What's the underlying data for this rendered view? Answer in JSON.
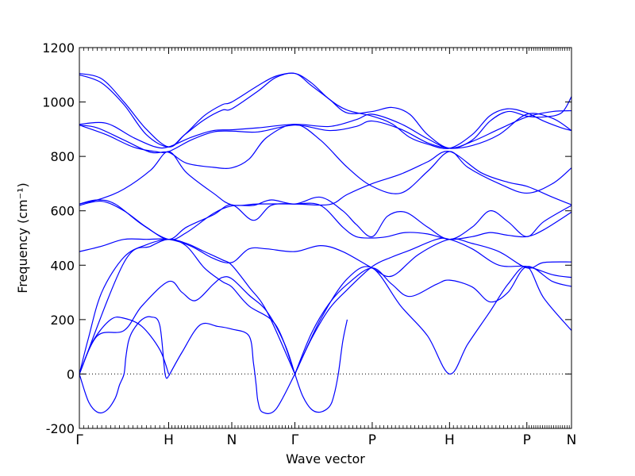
{
  "chart_data": {
    "type": "line",
    "title": "",
    "xlabel": "Wave vector",
    "ylabel": "Frequency (cm⁻¹)",
    "ylim": [
      -200,
      1200
    ],
    "y_ticks": [
      -200,
      0,
      200,
      400,
      600,
      800,
      1000,
      1200
    ],
    "grid": false,
    "legend": "none",
    "line_color": "#0000ff",
    "zero_line": {
      "y": 0,
      "style": "dotted",
      "color": "#000000"
    },
    "x_ticks": [
      {
        "label": "Γ",
        "x": 0.0
      },
      {
        "label": "H",
        "x": 1.0
      },
      {
        "label": "N",
        "x": 1.707
      },
      {
        "label": "Γ",
        "x": 2.414
      },
      {
        "label": "P",
        "x": 3.28
      },
      {
        "label": "H",
        "x": 4.146
      },
      {
        "label": "P",
        "x": 5.012
      },
      {
        "label": "N",
        "x": 5.512
      }
    ],
    "minor_ticks_per_segment": 20,
    "series": [
      {
        "x": [
          0,
          0.25,
          0.5,
          0.75,
          1,
          1.18,
          1.4,
          1.6,
          1.707,
          2.0,
          2.2,
          2.414,
          2.6,
          2.8,
          3.0,
          3.28,
          3.5,
          3.7,
          3.9,
          4.146,
          4.4,
          4.6,
          4.8,
          5.012,
          5.2,
          5.4,
          5.512
        ],
        "y": [
          1105,
          1085,
          1000,
          900,
          835,
          880,
          950,
          990,
          1000,
          1060,
          1095,
          1105,
          1070,
          1010,
          970,
          948,
          920,
          870,
          845,
          830,
          880,
          950,
          975,
          960,
          930,
          905,
          895
        ]
      },
      {
        "x": [
          0,
          0.25,
          0.5,
          0.75,
          1,
          1.18,
          1.4,
          1.6,
          1.707,
          2.0,
          2.2,
          2.414,
          2.6,
          2.8,
          3.0,
          3.28,
          3.5,
          3.7,
          3.9,
          4.146,
          4.4,
          4.6,
          4.8,
          5.012,
          5.2,
          5.4,
          5.512
        ],
        "y": [
          1100,
          1070,
          990,
          880,
          835,
          880,
          935,
          970,
          975,
          1040,
          1090,
          1105,
          1060,
          1010,
          960,
          965,
          980,
          955,
          880,
          830,
          860,
          930,
          965,
          948,
          945,
          960,
          1020
        ]
      },
      {
        "x": [
          0,
          0.3,
          0.6,
          0.85,
          1,
          1.25,
          1.5,
          1.707,
          2.0,
          2.414,
          2.8,
          3.1,
          3.28,
          3.6,
          3.9,
          4.146,
          4.4,
          4.7,
          5.012,
          5.3,
          5.512
        ],
        "y": [
          918,
          922,
          870,
          835,
          835,
          870,
          895,
          898,
          905,
          918,
          910,
          935,
          955,
          920,
          865,
          830,
          855,
          900,
          945,
          965,
          968
        ]
      },
      {
        "x": [
          0,
          0.3,
          0.6,
          0.85,
          1,
          1.25,
          1.5,
          1.707,
          2.0,
          2.414,
          2.8,
          3.1,
          3.28,
          3.6,
          3.9,
          4.146,
          4.4,
          4.7,
          5.012,
          5.3,
          5.512
        ],
        "y": [
          915,
          880,
          835,
          818,
          818,
          860,
          890,
          893,
          890,
          915,
          895,
          910,
          930,
          900,
          850,
          830,
          840,
          880,
          955,
          940,
          895
        ]
      },
      {
        "x": [
          0,
          0.2,
          0.5,
          0.8,
          1,
          1.2,
          1.5,
          1.707,
          1.9,
          2.1,
          2.414,
          2.7,
          3.0,
          3.28,
          3.6,
          3.9,
          4.146,
          4.35,
          4.7,
          5.012,
          5.3,
          5.512
        ],
        "y": [
          915,
          905,
          860,
          815,
          815,
          775,
          760,
          758,
          790,
          870,
          918,
          860,
          760,
          690,
          665,
          745,
          818,
          760,
          700,
          665,
          700,
          758
        ]
      },
      {
        "x": [
          0,
          0.25,
          0.5,
          0.8,
          1,
          1.2,
          1.5,
          1.707,
          2.0,
          2.414,
          2.8,
          3.0,
          3.28,
          3.6,
          3.9,
          4.146,
          4.5,
          4.8,
          5.012,
          5.3,
          5.512
        ],
        "y": [
          625,
          645,
          680,
          750,
          818,
          740,
          665,
          622,
          625,
          625,
          623,
          660,
          700,
          735,
          780,
          818,
          740,
          705,
          690,
          650,
          622
        ]
      },
      {
        "x": [
          0,
          0.2,
          0.4,
          0.7,
          1,
          1.2,
          1.5,
          1.707,
          1.95,
          2.15,
          2.414,
          2.7,
          2.95,
          3.1,
          3.28,
          3.45,
          3.65,
          3.9,
          4.146,
          4.4,
          4.6,
          4.8,
          5.012,
          5.2,
          5.512
        ],
        "y": [
          625,
          640,
          625,
          550,
          495,
          520,
          590,
          618,
          620,
          640,
          625,
          650,
          600,
          550,
          505,
          580,
          595,
          540,
          495,
          540,
          600,
          560,
          505,
          560,
          620
        ]
      },
      {
        "x": [
          0,
          0.25,
          0.5,
          0.75,
          1,
          1.2,
          1.5,
          1.707,
          1.95,
          2.15,
          2.414,
          2.7,
          2.95,
          3.1,
          3.28,
          3.45,
          3.65,
          3.9,
          4.146,
          4.4,
          4.6,
          4.8,
          5.012,
          5.2,
          5.512
        ],
        "y": [
          620,
          635,
          600,
          540,
          495,
          540,
          585,
          622,
          565,
          620,
          625,
          620,
          540,
          505,
          500,
          505,
          520,
          515,
          495,
          505,
          520,
          510,
          505,
          530,
          595
        ]
      },
      {
        "x": [
          0,
          0.25,
          0.5,
          0.75,
          1,
          1.25,
          1.5,
          1.707,
          1.9,
          2.1,
          2.414,
          2.7,
          2.95,
          3.28,
          3.5,
          3.8,
          4.146,
          4.4,
          4.7,
          5.012,
          5.2,
          5.512
        ],
        "y": [
          450,
          470,
          495,
          495,
          495,
          470,
          425,
          410,
          460,
          460,
          450,
          472,
          450,
          390,
          360,
          440,
          495,
          480,
          450,
          390,
          410,
          412
        ]
      },
      {
        "x": [
          0,
          0.1,
          0.25,
          0.5,
          0.75,
          1,
          1.2,
          1.4,
          1.6,
          1.707,
          1.9,
          2.2,
          2.414
        ],
        "y": [
          0,
          130,
          300,
          430,
          475,
          495,
          470,
          390,
          340,
          320,
          250,
          180,
          0
        ]
      },
      {
        "x": [
          2.414,
          2.6,
          2.8,
          3.0,
          3.28,
          3.5,
          3.7,
          4.0,
          4.146,
          4.4,
          4.7,
          5.012,
          5.3,
          5.512
        ],
        "y": [
          0,
          130,
          240,
          310,
          395,
          430,
          455,
          495,
          495,
          460,
          400,
          395,
          365,
          355
        ]
      },
      {
        "x": [
          2.414,
          2.6,
          2.8,
          3.0,
          3.28,
          3.5,
          3.7,
          4.0,
          4.146,
          4.4,
          4.6,
          4.8,
          5.012,
          5.3,
          5.512
        ],
        "y": [
          0,
          150,
          260,
          330,
          390,
          330,
          285,
          330,
          345,
          320,
          265,
          300,
          395,
          340,
          322
        ]
      },
      {
        "x": [
          0,
          0.5,
          0.8,
          1,
          1.2,
          1.4,
          1.6,
          1.707,
          1.9,
          2.1,
          2.414
        ],
        "y": [
          0,
          410,
          470,
          495,
          480,
          450,
          420,
          400,
          320,
          230,
          0
        ]
      },
      {
        "x": [
          0,
          0.2,
          0.5,
          0.7,
          1,
          1.15,
          1.3,
          1.5,
          1.6,
          1.707,
          1.9,
          2.1,
          2.3,
          2.414
        ],
        "y": [
          0,
          140,
          160,
          250,
          340,
          300,
          270,
          330,
          355,
          350,
          290,
          230,
          110,
          0
        ]
      },
      {
        "x": [
          2.414,
          2.7,
          3.0,
          3.28,
          3.6,
          3.9,
          4.146,
          4.35,
          4.6,
          4.8,
          5.012,
          5.2,
          5.512
        ],
        "y": [
          0,
          200,
          350,
          390,
          250,
          140,
          0,
          110,
          230,
          330,
          395,
          280,
          160
        ]
      },
      {
        "x": [
          0,
          0.1,
          0.2,
          0.3,
          0.4,
          0.45,
          0.5,
          0.52,
          0.55,
          0.6,
          0.7,
          0.8,
          0.9,
          0.96,
          1
        ],
        "y": [
          0,
          -100,
          -140,
          -135,
          -90,
          -40,
          0,
          60,
          120,
          160,
          200,
          210,
          180,
          0,
          -8
        ]
      },
      {
        "x": [
          0,
          0.15,
          0.35,
          0.5,
          0.7,
          0.9,
          1
        ],
        "y": [
          0,
          120,
          200,
          205,
          175,
          90,
          0
        ]
      },
      {
        "x": [
          1,
          1.15,
          1.35,
          1.55,
          1.707,
          1.9,
          1.95,
          1.98,
          2.0,
          2.05,
          2.2,
          2.414
        ],
        "y": [
          -8,
          80,
          180,
          175,
          165,
          140,
          40,
          -40,
          -100,
          -140,
          -130,
          0
        ]
      },
      {
        "x": [
          2.414,
          2.5,
          2.6,
          2.7,
          2.8,
          2.85,
          2.9,
          2.95,
          3.0
        ],
        "y": [
          0,
          -80,
          -130,
          -140,
          -120,
          -80,
          0,
          120,
          200
        ]
      }
    ]
  }
}
